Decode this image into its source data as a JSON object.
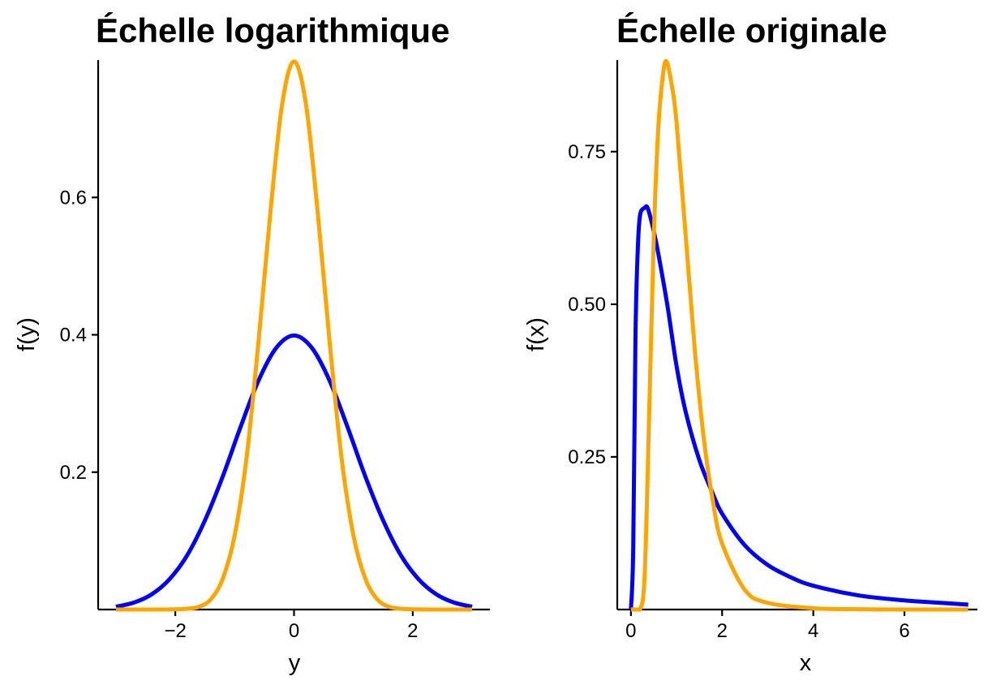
{
  "chart_data": [
    {
      "type": "line",
      "title": "Échelle logarithmique",
      "xlabel": "y",
      "ylabel": "f(y)",
      "xlim": [
        -3.3,
        3.3
      ],
      "ylim": [
        0,
        0.8
      ],
      "xticks": [
        -2,
        0,
        2
      ],
      "xtick_labels": [
        "−2",
        "0",
        "2"
      ],
      "yticks": [
        0.2,
        0.4,
        0.6
      ],
      "ytick_labels": [
        "0.2",
        "0.4",
        "0.6"
      ],
      "grid": false,
      "legend": "none",
      "series": [
        {
          "color": "#0000FF",
          "x": [
            -3.0,
            -2.7,
            -2.4,
            -2.1,
            -1.8,
            -1.5,
            -1.2,
            -0.9,
            -0.6,
            -0.3,
            0.0,
            0.3,
            0.6,
            0.9,
            1.2,
            1.5,
            1.8,
            2.1,
            2.4,
            2.7,
            3.0
          ],
          "y": [
            0.004,
            0.01,
            0.022,
            0.044,
            0.079,
            0.13,
            0.194,
            0.266,
            0.333,
            0.381,
            0.399,
            0.381,
            0.333,
            0.266,
            0.194,
            0.13,
            0.079,
            0.044,
            0.022,
            0.01,
            0.004
          ]
        },
        {
          "color": "#FFA500",
          "x": [
            -3.0,
            -2.4,
            -2.0,
            -1.8,
            -1.6,
            -1.4,
            -1.2,
            -1.0,
            -0.8,
            -0.6,
            -0.4,
            -0.2,
            0.0,
            0.2,
            0.4,
            0.6,
            0.8,
            1.0,
            1.2,
            1.4,
            1.6,
            1.8,
            2.0,
            2.4,
            3.0
          ],
          "y": [
            0.0,
            0.0,
            0.0003,
            0.0012,
            0.004,
            0.015,
            0.045,
            0.108,
            0.221,
            0.389,
            0.577,
            0.736,
            0.798,
            0.736,
            0.577,
            0.389,
            0.221,
            0.108,
            0.045,
            0.015,
            0.004,
            0.0012,
            0.0003,
            0.0,
            0.0
          ]
        }
      ]
    },
    {
      "type": "line",
      "title": "Échelle originale",
      "xlabel": "x",
      "ylabel": "f(x)",
      "xlim": [
        -0.3,
        7.6
      ],
      "ylim": [
        0,
        0.9
      ],
      "xticks": [
        0,
        2,
        4,
        6
      ],
      "xtick_labels": [
        "0",
        "2",
        "4",
        "6"
      ],
      "yticks": [
        0.25,
        0.5,
        0.75
      ],
      "ytick_labels": [
        "0.25",
        "0.50",
        "0.75"
      ],
      "grid": false,
      "legend": "none",
      "series": [
        {
          "color": "#0000FF",
          "x": [
            0.0,
            0.05,
            0.1,
            0.15,
            0.2,
            0.3,
            0.37,
            0.5,
            0.6,
            0.8,
            1.0,
            1.2,
            1.5,
            1.8,
            2.0,
            2.5,
            3.0,
            3.5,
            4.0,
            5.0,
            6.0,
            7.0,
            7.4
          ],
          "y": [
            0.0,
            0.1,
            0.45,
            0.59,
            0.646,
            0.658,
            0.657,
            0.62,
            0.583,
            0.498,
            0.399,
            0.324,
            0.245,
            0.189,
            0.157,
            0.105,
            0.073,
            0.053,
            0.039,
            0.023,
            0.015,
            0.01,
            0.008
          ]
        },
        {
          "color": "#FFA500",
          "x": [
            0.0,
            0.1,
            0.2,
            0.3,
            0.4,
            0.5,
            0.6,
            0.7,
            0.78,
            0.9,
            1.0,
            1.2,
            1.4,
            1.6,
            1.8,
            2.0,
            2.5,
            3.0,
            4.0,
            5.0,
            6.0,
            7.4
          ],
          "y": [
            0.0,
            0.0,
            0.0,
            0.055,
            0.32,
            0.608,
            0.789,
            0.874,
            0.898,
            0.857,
            0.798,
            0.613,
            0.426,
            0.279,
            0.176,
            0.108,
            0.032,
            0.011,
            0.002,
            0.0005,
            0.0,
            0.0
          ]
        }
      ]
    }
  ]
}
